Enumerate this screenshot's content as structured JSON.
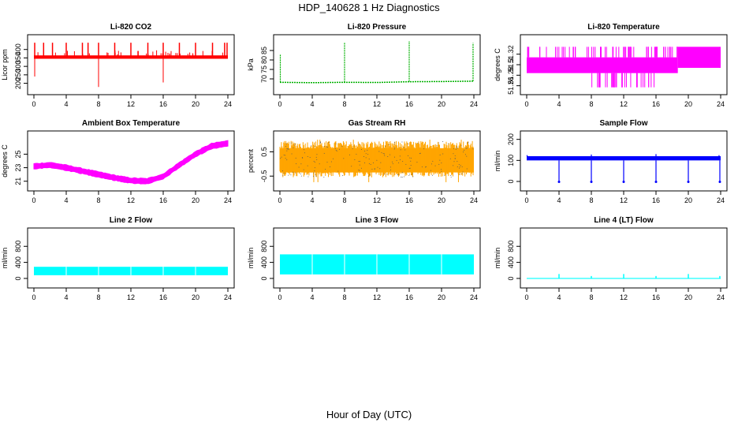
{
  "figure": {
    "title": "HDP_140628  1 Hz Diagnostics",
    "xlabel": "Hour of Day (UTC)"
  },
  "chart_data": [
    {
      "type": "line",
      "title": "Li-820 CO2",
      "ylabel": "Licor ppm",
      "color": "#ff0000",
      "xlim": [
        0,
        24
      ],
      "ylim": [
        170,
        450
      ],
      "xticks": [
        0,
        4,
        8,
        12,
        16,
        20,
        24
      ],
      "yticks": [
        200,
        250,
        300,
        350,
        400
      ],
      "style": "co2",
      "baseline": 355,
      "band": [
        345,
        365
      ],
      "spikes_up": [
        0.1,
        1.2,
        2.3,
        4.0,
        6.0,
        6.7,
        8.0,
        10.0,
        12.0,
        14.1,
        16.0,
        18.0,
        20.0,
        22.1,
        23.6,
        23.9
      ],
      "spike_up_top": 440,
      "dips": [
        {
          "x": 0.1,
          "y": 240
        },
        {
          "x": 8.0,
          "y": 178
        },
        {
          "x": 16.0,
          "y": 205
        }
      ]
    },
    {
      "type": "line",
      "title": "Li-820 Pressure",
      "ylabel": "kPa",
      "color": "#00b000",
      "xlim": [
        0,
        24
      ],
      "ylim": [
        65,
        90
      ],
      "xticks": [
        0,
        4,
        8,
        12,
        16,
        20,
        24
      ],
      "yticks": [
        70,
        75,
        80,
        85
      ],
      "style": "pressure",
      "series": [
        {
          "x": 0,
          "y": 68.2
        },
        {
          "x": 4,
          "y": 68.0
        },
        {
          "x": 8,
          "y": 68.2
        },
        {
          "x": 12,
          "y": 68.1
        },
        {
          "x": 16,
          "y": 68.5
        },
        {
          "x": 20,
          "y": 68.6
        },
        {
          "x": 24,
          "y": 68.8
        }
      ],
      "spikes": [
        {
          "x": 0.05,
          "y": 83
        },
        {
          "x": 8.0,
          "y": 89
        },
        {
          "x": 16.0,
          "y": 90
        },
        {
          "x": 23.9,
          "y": 89
        }
      ]
    },
    {
      "type": "area",
      "title": "Li-820 Temperature",
      "ylabel": "degrees C",
      "color": "#ff00ff",
      "xlim": [
        0,
        24
      ],
      "ylim": [
        51.255,
        51.345
      ],
      "xticks": [
        0,
        4,
        8,
        12,
        16,
        20,
        24
      ],
      "yticks": [
        51.26,
        51.28,
        51.3,
        51.32
      ],
      "style": "levels",
      "segments": [
        {
          "x0": 0,
          "x1": 18.7,
          "lo": 51.284,
          "hi": 51.314
        },
        {
          "x0": 18.7,
          "x1": 24,
          "lo": 51.294,
          "hi": 51.334
        }
      ],
      "flicker_top": 51.334,
      "flicker_bottom": 51.257
    },
    {
      "type": "area",
      "title": "Ambient Box Temperature",
      "ylabel": "degrees C",
      "color": "#ff00ff",
      "xlim": [
        0,
        24
      ],
      "ylim": [
        20.5,
        27.5
      ],
      "xticks": [
        0,
        4,
        8,
        12,
        16,
        20,
        24
      ],
      "yticks": [
        21,
        23,
        25
      ],
      "style": "band",
      "series": [
        {
          "x": 0,
          "y": 23.2
        },
        {
          "x": 2,
          "y": 23.4
        },
        {
          "x": 4,
          "y": 23.0
        },
        {
          "x": 6,
          "y": 22.5
        },
        {
          "x": 8,
          "y": 22.0
        },
        {
          "x": 10,
          "y": 21.5
        },
        {
          "x": 12,
          "y": 21.1
        },
        {
          "x": 14,
          "y": 21.0
        },
        {
          "x": 16,
          "y": 21.7
        },
        {
          "x": 18,
          "y": 23.4
        },
        {
          "x": 20,
          "y": 25.0
        },
        {
          "x": 22,
          "y": 26.2
        },
        {
          "x": 24,
          "y": 26.6
        }
      ],
      "half_width": 0.45
    },
    {
      "type": "area",
      "title": "Gas Stream RH",
      "ylabel": "percent",
      "color": "#ffa500",
      "xlim": [
        0,
        24
      ],
      "ylim": [
        -0.85,
        1.1
      ],
      "xticks": [
        0,
        4,
        8,
        12,
        16,
        20,
        24
      ],
      "yticks": [
        -0.5,
        0.5
      ],
      "style": "noise",
      "center": 0.2,
      "lo": -0.55,
      "hi": 0.95,
      "extreme_lo": -0.75,
      "extreme_hi": 1.0
    },
    {
      "type": "line",
      "title": "Sample Flow",
      "ylabel": "ml/min",
      "color": "#0000ff",
      "xlim": [
        0,
        24
      ],
      "ylim": [
        -15,
        210
      ],
      "xticks": [
        0,
        4,
        8,
        12,
        16,
        20,
        24
      ],
      "yticks": [
        0,
        100,
        200
      ],
      "style": "flow",
      "band": [
        100,
        120
      ],
      "dips": [
        {
          "x": 4.0,
          "y": -2
        },
        {
          "x": 8.0,
          "y": -2
        },
        {
          "x": 12.0,
          "y": -2
        },
        {
          "x": 16.0,
          "y": -2
        },
        {
          "x": 20.0,
          "y": -2
        },
        {
          "x": 23.9,
          "y": -2
        }
      ],
      "spikes": [
        {
          "x": 0.05,
          "y": 125
        },
        {
          "x": 8.0,
          "y": 128
        },
        {
          "x": 16.0,
          "y": 130
        },
        {
          "x": 23.8,
          "y": 125
        }
      ]
    },
    {
      "type": "area",
      "title": "Line 2 Flow",
      "ylabel": "ml/min",
      "color": "#00ffff",
      "xlim": [
        0,
        24
      ],
      "ylim": [
        -80,
        1100
      ],
      "xticks": [
        0,
        4,
        8,
        12,
        16,
        20,
        24
      ],
      "yticks": [
        0,
        400,
        800
      ],
      "style": "block",
      "lo": 80,
      "hi": 290,
      "x0": 0,
      "x1": 24,
      "gaps": [
        4,
        8,
        12,
        16,
        20
      ]
    },
    {
      "type": "area",
      "title": "Line 3 Flow",
      "ylabel": "ml/min",
      "color": "#00ffff",
      "xlim": [
        0,
        24
      ],
      "ylim": [
        -80,
        1100
      ],
      "xticks": [
        0,
        4,
        8,
        12,
        16,
        20,
        24
      ],
      "yticks": [
        0,
        400,
        800
      ],
      "style": "block",
      "lo": 100,
      "hi": 600,
      "x0": 0,
      "x1": 24,
      "gaps": [
        4,
        8,
        12,
        16,
        20
      ]
    },
    {
      "type": "line",
      "title": "Line 4 (LT) Flow",
      "ylabel": "ml/min",
      "color": "#00ffff",
      "xlim": [
        0,
        24
      ],
      "ylim": [
        -80,
        1100
      ],
      "xticks": [
        0,
        4,
        8,
        12,
        16,
        20,
        24
      ],
      "yticks": [
        0,
        400,
        800
      ],
      "style": "flat",
      "level": 0,
      "spikes": [
        {
          "x": 4.0,
          "y": 110
        },
        {
          "x": 8.0,
          "y": 60
        },
        {
          "x": 12.0,
          "y": 110
        },
        {
          "x": 16.0,
          "y": 60
        },
        {
          "x": 20.0,
          "y": 110
        },
        {
          "x": 23.9,
          "y": 60
        }
      ]
    }
  ]
}
